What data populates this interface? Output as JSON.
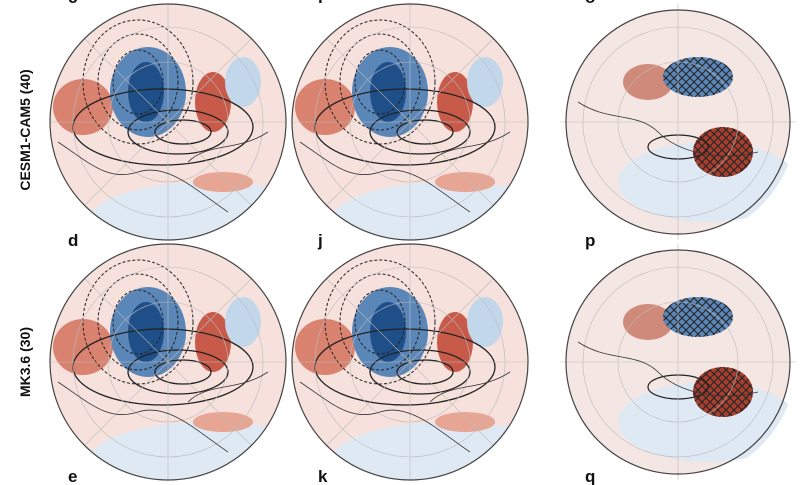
{
  "row_labels": [
    "CESM1-CAM5 (40)",
    "MK3.6 (30)"
  ],
  "panel_letters": {
    "top": [
      "c",
      "i",
      "o"
    ],
    "middle": [
      "d",
      "j",
      "p"
    ],
    "bottom": [
      "e",
      "k",
      "q"
    ]
  }
}
